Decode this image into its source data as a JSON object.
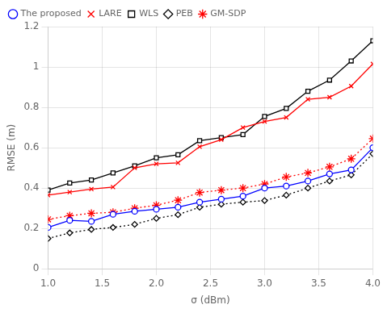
{
  "chart_data": {
    "type": "line",
    "xlabel": "σ (dBm)",
    "ylabel": "RMSE (m)",
    "x": [
      1.0,
      1.2,
      1.4,
      1.6,
      1.8,
      2.0,
      2.2,
      2.4,
      2.6,
      2.8,
      3.0,
      3.2,
      3.4,
      3.6,
      3.8,
      4.0
    ],
    "series": [
      {
        "name": "The proposed",
        "color": "#0000FF",
        "marker": "circle",
        "line_style": "solid",
        "values": [
          0.205,
          0.24,
          0.235,
          0.27,
          0.285,
          0.295,
          0.305,
          0.33,
          0.345,
          0.36,
          0.4,
          0.41,
          0.435,
          0.47,
          0.49,
          0.6
        ]
      },
      {
        "name": "LARE",
        "color": "#FF0000",
        "marker": "x",
        "line_style": "solid",
        "values": [
          0.365,
          0.38,
          0.395,
          0.405,
          0.5,
          0.52,
          0.525,
          0.605,
          0.64,
          0.7,
          0.73,
          0.75,
          0.84,
          0.85,
          0.905,
          1.015
        ]
      },
      {
        "name": "WLS",
        "color": "#000000",
        "marker": "square",
        "line_style": "solid",
        "values": [
          0.39,
          0.425,
          0.44,
          0.475,
          0.51,
          0.55,
          0.565,
          0.635,
          0.65,
          0.665,
          0.755,
          0.795,
          0.88,
          0.935,
          1.03,
          1.13
        ]
      },
      {
        "name": "PEB",
        "color": "#000000",
        "marker": "diamond",
        "line_style": "dotted",
        "values": [
          0.15,
          0.178,
          0.195,
          0.205,
          0.22,
          0.25,
          0.268,
          0.305,
          0.32,
          0.33,
          0.338,
          0.365,
          0.4,
          0.435,
          0.465,
          0.57
        ]
      },
      {
        "name": "GM-SDP",
        "color": "#FF0000",
        "marker": "star",
        "line_style": "dotted",
        "values": [
          0.245,
          0.263,
          0.275,
          0.28,
          0.3,
          0.315,
          0.34,
          0.378,
          0.39,
          0.4,
          0.42,
          0.455,
          0.475,
          0.505,
          0.545,
          0.645
        ]
      }
    ],
    "xlim": [
      1.0,
      4.0
    ],
    "xticks": [
      {
        "value": 1.0,
        "label": "1.0"
      },
      1.5,
      {
        "value": 2.0,
        "label": "2.0"
      },
      2.5,
      {
        "value": 3.0,
        "label": "3.0"
      },
      3.5,
      {
        "value": 4.0,
        "label": "4.0"
      }
    ],
    "ylim": [
      0,
      1.2
    ],
    "yticks": [
      0,
      0.2,
      0.4,
      0.6,
      0.8,
      1,
      1.2
    ],
    "grid": true,
    "legend": "upper left"
  }
}
